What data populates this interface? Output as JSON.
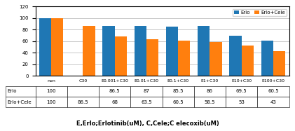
{
  "chart_data": {
    "type": "bar",
    "categories": [
      "non",
      "C30",
      "E0.001+C30",
      "E0.01+C30",
      "E0.1+C30",
      "E1+C30",
      "E10+C30",
      "E100+C30"
    ],
    "series": [
      {
        "name": "Erlo",
        "values": [
          100,
          null,
          86.5,
          87,
          85.5,
          86,
          69.5,
          60.5
        ]
      },
      {
        "name": "Erlo+Cele",
        "values": [
          100,
          86.5,
          68,
          63.5,
          60.5,
          58.5,
          53,
          43
        ]
      }
    ],
    "xlabel": "E,Erlo;Erlotinib(uM), C,Cele;C elecoxib(uM)",
    "ylim": [
      0,
      120
    ],
    "yticks": [
      0,
      20,
      40,
      60,
      80,
      100,
      120
    ],
    "grid": true,
    "legend": "upper right"
  }
}
